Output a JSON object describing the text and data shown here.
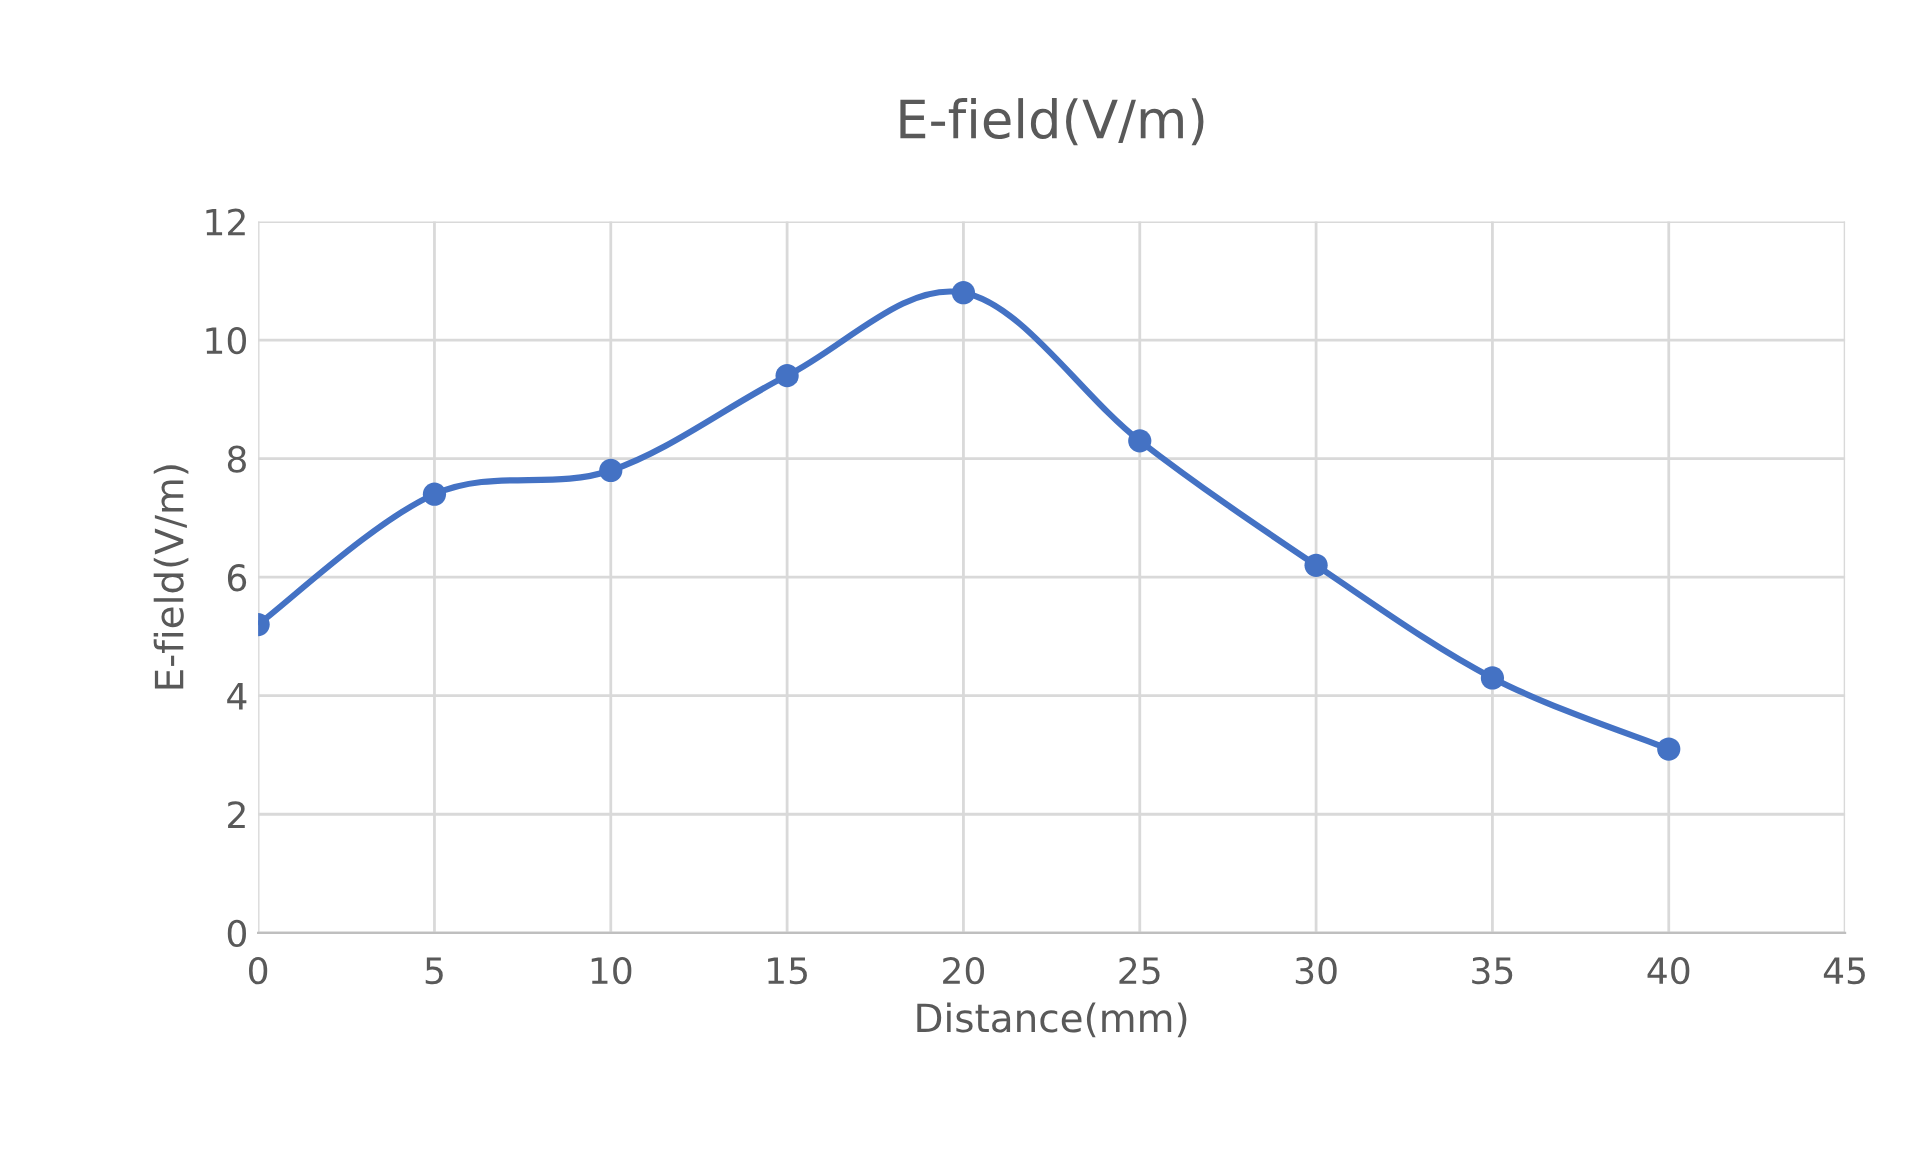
{
  "chart_data": {
    "type": "line",
    "title": "E-field(V/m)",
    "xlabel": "Distance(mm)",
    "ylabel": "E-field(V/m)",
    "x": [
      0,
      5,
      10,
      15,
      20,
      25,
      30,
      35,
      40
    ],
    "series": [
      {
        "color": "#4472c4",
        "values": [
          5.2,
          7.4,
          7.8,
          9.4,
          10.8,
          8.3,
          6.2,
          4.3,
          3.1
        ]
      }
    ],
    "xlim": [
      0,
      45
    ],
    "xticks": [
      0,
      5,
      10,
      15,
      20,
      25,
      30,
      35,
      40,
      45
    ],
    "ylim": [
      0,
      12
    ],
    "yticks": [
      0,
      2,
      4,
      6,
      8,
      10,
      12
    ],
    "grid": true,
    "marker": "circle",
    "line_style": "solid",
    "legend": false
  }
}
